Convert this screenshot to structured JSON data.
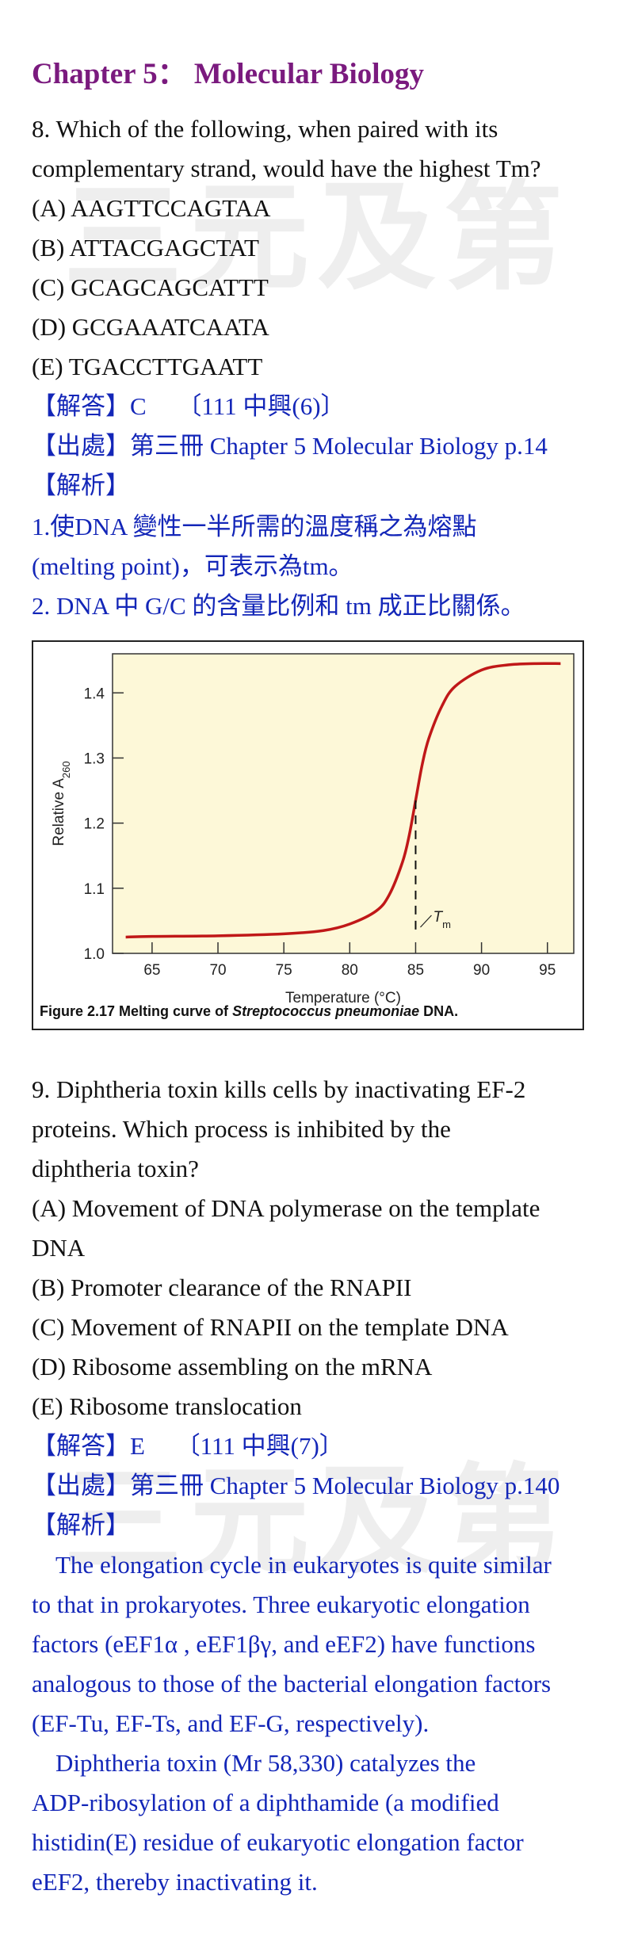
{
  "watermark": "三元及第",
  "chapter_title": "Chapter 5： Molecular Biology",
  "q8": {
    "stem": [
      "8. Which of the following, when paired with its",
      "complementary strand, would have the highest Tm?"
    ],
    "options": [
      "(A) AAGTTCCAGTAA",
      "(B) ATTACGAGCTAT",
      "(C) GCAGCAGCATTT",
      "(D) GCGAAATCAATA",
      "(E) TGACCTTGAATT"
    ],
    "answer": "【解答】C　 〔111 中興(6)〕",
    "source": "【出處】第三冊 Chapter 5 Molecular Biology p.14",
    "analysis_label": "【解析】",
    "analysis": [
      "1.使DNA 變性一半所需的溫度稱之為熔點",
      "(melting point)，可表示為tm。",
      "2. DNA 中 G/C 的含量比例和 tm 成正比關係。"
    ]
  },
  "figure": {
    "caption_prefix": "Figure 2.17 Melting curve of ",
    "caption_italic": "Streptococcus pneumoniae",
    "caption_suffix": " DNA.",
    "tm_label": "T",
    "tm_sub": "m",
    "bg_color": "#fdf8d8",
    "curve_color": "#c01818"
  },
  "chart_data": {
    "type": "line",
    "title": "",
    "xlabel": "Temperature (°C)",
    "ylabel_main": "Relative A",
    "ylabel_sub": "260",
    "xlim": [
      62,
      97
    ],
    "ylim": [
      1.0,
      1.46
    ],
    "xticks": [
      65,
      70,
      75,
      80,
      85,
      90,
      95
    ],
    "yticks": [
      1.0,
      1.1,
      1.2,
      1.3,
      1.4
    ],
    "ytick_labels": [
      "1.0",
      "1.1",
      "1.2",
      "1.3",
      "1.4"
    ],
    "tm": 85,
    "series": [
      {
        "x": [
          63,
          65,
          70,
          75,
          78,
          80,
          82,
          83,
          84,
          84.5,
          85,
          85.5,
          86,
          87,
          88,
          90,
          92,
          94,
          96
        ],
        "y": [
          1.025,
          1.026,
          1.027,
          1.03,
          1.035,
          1.045,
          1.065,
          1.09,
          1.14,
          1.18,
          1.235,
          1.29,
          1.33,
          1.38,
          1.41,
          1.435,
          1.443,
          1.445,
          1.445
        ]
      }
    ]
  },
  "q9": {
    "stem": [
      "9. Diphtheria toxin kills cells by inactivating EF-2",
      "proteins. Which process is inhibited by the",
      "diphtheria toxin?"
    ],
    "options": [
      "(A) Movement of DNA polymerase on the template",
      "DNA",
      "(B) Promoter clearance of the RNAPII",
      "(C) Movement of RNAPII on the template DNA",
      "(D) Ribosome assembling on the mRNA",
      "(E) Ribosome translocation"
    ],
    "answer": "【解答】E　 〔111 中興(7)〕",
    "source": "【出處】第三冊 Chapter 5 Molecular Biology p.140",
    "analysis_label": "【解析】",
    "analysis_p1": [
      "The elongation cycle in eukaryotes is quite similar",
      "to that in prokaryotes. Three eukaryotic elongation",
      "factors (eEF1α , eEF1βγ, and eEF2) have functions",
      "analogous to those of the bacterial elongation factors",
      "(EF-Tu, EF-Ts, and EF-G, respectively)."
    ],
    "analysis_p2": [
      "Diphtheria toxin (Mr 58,330) catalyzes the",
      "ADP-ribosylation of a diphthamide (a modified",
      "histidin(E) residue of eukaryotic elongation factor",
      "eEF2, thereby inactivating it."
    ]
  }
}
